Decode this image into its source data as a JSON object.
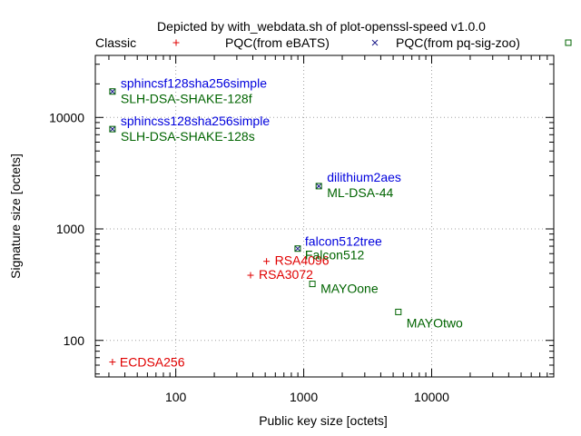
{
  "chart_data": {
    "type": "scatter",
    "title": "Depicted by with_webdata.sh of plot-openssl-speed v1.0.0",
    "xlabel": "Public key size [octets]",
    "ylabel": "Signature size [octets]",
    "x_scale": "log",
    "y_scale": "log",
    "xlim": [
      23.5,
      90000
    ],
    "ylim": [
      47,
      36000
    ],
    "x_ticks": [
      {
        "value": 100,
        "label": "100"
      },
      {
        "value": 1000,
        "label": "1000"
      },
      {
        "value": 10000,
        "label": "10000"
      }
    ],
    "y_ticks": [
      {
        "value": 100,
        "label": "100"
      },
      {
        "value": 1000,
        "label": "1000"
      },
      {
        "value": 10000,
        "label": "10000"
      }
    ],
    "grid": true,
    "legend_position": "top",
    "colors": {
      "classic": "#e00000",
      "ebats": "#0000dd",
      "pqsigzoo": "#006400",
      "ebats_marker": "#1a1a8a",
      "grid": "#a0a0a0",
      "axis": "#000000"
    },
    "series": [
      {
        "name": "Classic",
        "marker": "plus",
        "points": [
          {
            "label": "ECDSA256",
            "x": 32,
            "y": 64
          },
          {
            "label": "RSA3072",
            "x": 384,
            "y": 384
          },
          {
            "label": "RSA4096",
            "x": 512,
            "y": 512
          }
        ]
      },
      {
        "name": "PQC(from eBATS)",
        "marker": "cross",
        "points": [
          {
            "label": "sphincsf128sha256simple",
            "x": 32,
            "y": 17088
          },
          {
            "label": "sphincss128sha256simple",
            "x": 32,
            "y": 7856
          },
          {
            "label": "dilithium2aes",
            "x": 1312,
            "y": 2420
          },
          {
            "label": "falcon512tree",
            "x": 897,
            "y": 666
          }
        ]
      },
      {
        "name": "PQC(from pq-sig-zoo)",
        "marker": "square",
        "points": [
          {
            "label": "SLH-DSA-SHAKE-128f",
            "x": 32,
            "y": 17088
          },
          {
            "label": "SLH-DSA-SHAKE-128s",
            "x": 32,
            "y": 7856
          },
          {
            "label": "ML-DSA-44",
            "x": 1312,
            "y": 2420
          },
          {
            "label": "Falcon512",
            "x": 897,
            "y": 666
          },
          {
            "label": "MAYOone",
            "x": 1168,
            "y": 321
          },
          {
            "label": "MAYOtwo",
            "x": 5488,
            "y": 180
          }
        ]
      }
    ]
  }
}
